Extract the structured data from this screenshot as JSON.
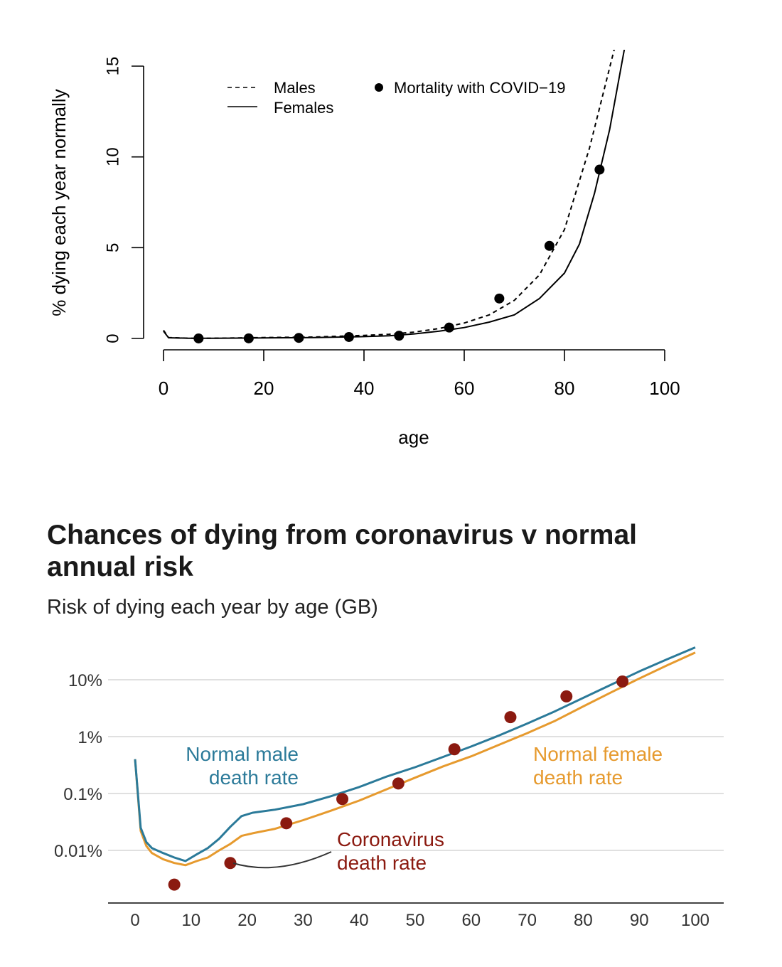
{
  "chart_data": [
    {
      "type": "line",
      "title": "",
      "xlabel": "age",
      "ylabel": "% dying each year normally",
      "xlim": [
        0,
        100
      ],
      "ylim": [
        0,
        15
      ],
      "x_ticks": [
        "0",
        "20",
        "40",
        "60",
        "80",
        "100"
      ],
      "y_ticks": [
        "0",
        "5",
        "10",
        "15"
      ],
      "legend": {
        "placement": "top",
        "males_label": "Males",
        "females_label": "Females",
        "covid_label": "Mortality with COVID−19"
      },
      "series": [
        {
          "name": "Males",
          "style": "dashed",
          "x": [
            0,
            1,
            5,
            10,
            20,
            30,
            40,
            45,
            50,
            55,
            60,
            65,
            70,
            75,
            80,
            85,
            90
          ],
          "y": [
            0.45,
            0.05,
            0.01,
            0.01,
            0.05,
            0.08,
            0.17,
            0.23,
            0.35,
            0.55,
            0.85,
            1.3,
            2.1,
            3.5,
            6.0,
            10.5,
            16.0
          ]
        },
        {
          "name": "Females",
          "style": "solid",
          "x": [
            0,
            1,
            5,
            10,
            20,
            30,
            40,
            45,
            50,
            55,
            60,
            65,
            70,
            75,
            80,
            83,
            86,
            89,
            92
          ],
          "y": [
            0.4,
            0.04,
            0.01,
            0.01,
            0.03,
            0.05,
            0.1,
            0.15,
            0.25,
            0.4,
            0.6,
            0.9,
            1.3,
            2.2,
            3.6,
            5.2,
            8.0,
            11.5,
            16.0
          ]
        },
        {
          "name": "Mortality with COVID−19",
          "style": "points",
          "x": [
            7,
            17,
            27,
            37,
            47,
            57,
            67,
            77,
            87
          ],
          "y": [
            0.002,
            0.006,
            0.03,
            0.08,
            0.15,
            0.6,
            2.2,
            5.1,
            9.3
          ]
        }
      ]
    },
    {
      "type": "line",
      "title": "Chances of dying from coronavirus v normal annual risk",
      "subtitle": "Risk of dying each year by age (GB)",
      "xlabel": "",
      "ylabel": "",
      "scale": "log",
      "xlim": [
        0,
        100
      ],
      "x_ticks": [
        "0",
        "10",
        "20",
        "30",
        "40",
        "50",
        "60",
        "70",
        "80",
        "90",
        "100"
      ],
      "y_ticks": [
        "10%",
        "1%",
        "0.1%",
        "0.01%"
      ],
      "grid": true,
      "colors": {
        "male": "#2b7a99",
        "female": "#e69a2e",
        "covid": "#8b1a10"
      },
      "annotations": {
        "male_line1": "Normal male",
        "male_line2": "death rate",
        "female_line1": "Normal female",
        "female_line2": "death rate",
        "covid_line1": "Coronavirus",
        "covid_line2": "death rate"
      },
      "series": [
        {
          "name": "Normal male",
          "x": [
            0,
            1,
            2,
            3,
            5,
            7,
            9,
            11,
            13,
            15,
            17,
            19,
            21,
            25,
            30,
            35,
            40,
            45,
            50,
            55,
            60,
            65,
            70,
            75,
            80,
            85,
            90,
            95,
            100
          ],
          "y": [
            0.4,
            0.025,
            0.014,
            0.011,
            0.009,
            0.0075,
            0.0065,
            0.0085,
            0.011,
            0.016,
            0.026,
            0.04,
            0.046,
            0.052,
            0.065,
            0.09,
            0.13,
            0.2,
            0.29,
            0.44,
            0.67,
            1.05,
            1.7,
            2.8,
            4.8,
            8.2,
            14.0,
            23.0,
            37.0
          ]
        },
        {
          "name": "Normal female",
          "x": [
            0,
            1,
            2,
            3,
            5,
            7,
            9,
            11,
            13,
            15,
            17,
            19,
            21,
            25,
            30,
            35,
            40,
            45,
            50,
            55,
            60,
            65,
            70,
            75,
            80,
            85,
            90,
            95,
            100
          ],
          "y": [
            0.4,
            0.022,
            0.012,
            0.009,
            0.007,
            0.006,
            0.0055,
            0.0065,
            0.0075,
            0.01,
            0.013,
            0.018,
            0.02,
            0.024,
            0.034,
            0.05,
            0.075,
            0.12,
            0.19,
            0.3,
            0.45,
            0.72,
            1.15,
            1.9,
            3.4,
            6.0,
            10.5,
            18.0,
            30.0
          ]
        },
        {
          "name": "Coronavirus",
          "x": [
            7,
            17,
            27,
            37,
            47,
            57,
            67,
            77,
            87
          ],
          "y": [
            0.0025,
            0.006,
            0.03,
            0.08,
            0.15,
            0.6,
            2.2,
            5.1,
            9.3
          ]
        }
      ]
    }
  ]
}
